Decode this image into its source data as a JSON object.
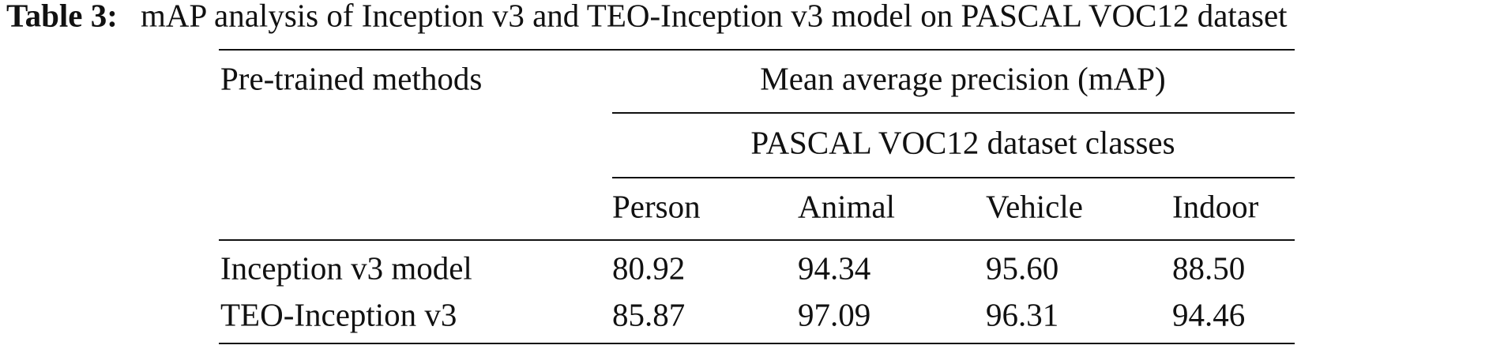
{
  "caption": {
    "label": "Table 3:",
    "text": "mAP analysis of Inception v3 and TEO-Inception v3 model on PASCAL VOC12 dataset"
  },
  "table": {
    "row_header": "Pre-trained methods",
    "group_header": "Mean average precision (mAP)",
    "subgroup_header": "PASCAL VOC12 dataset classes",
    "columns": [
      "Person",
      "Animal",
      "Vehicle",
      "Indoor"
    ],
    "rows": [
      [
        "Inception v3 model",
        "80.92",
        "94.34",
        "95.60",
        "88.50"
      ],
      [
        "TEO-Inception v3",
        "85.87",
        "97.09",
        "96.31",
        "94.46"
      ]
    ]
  }
}
